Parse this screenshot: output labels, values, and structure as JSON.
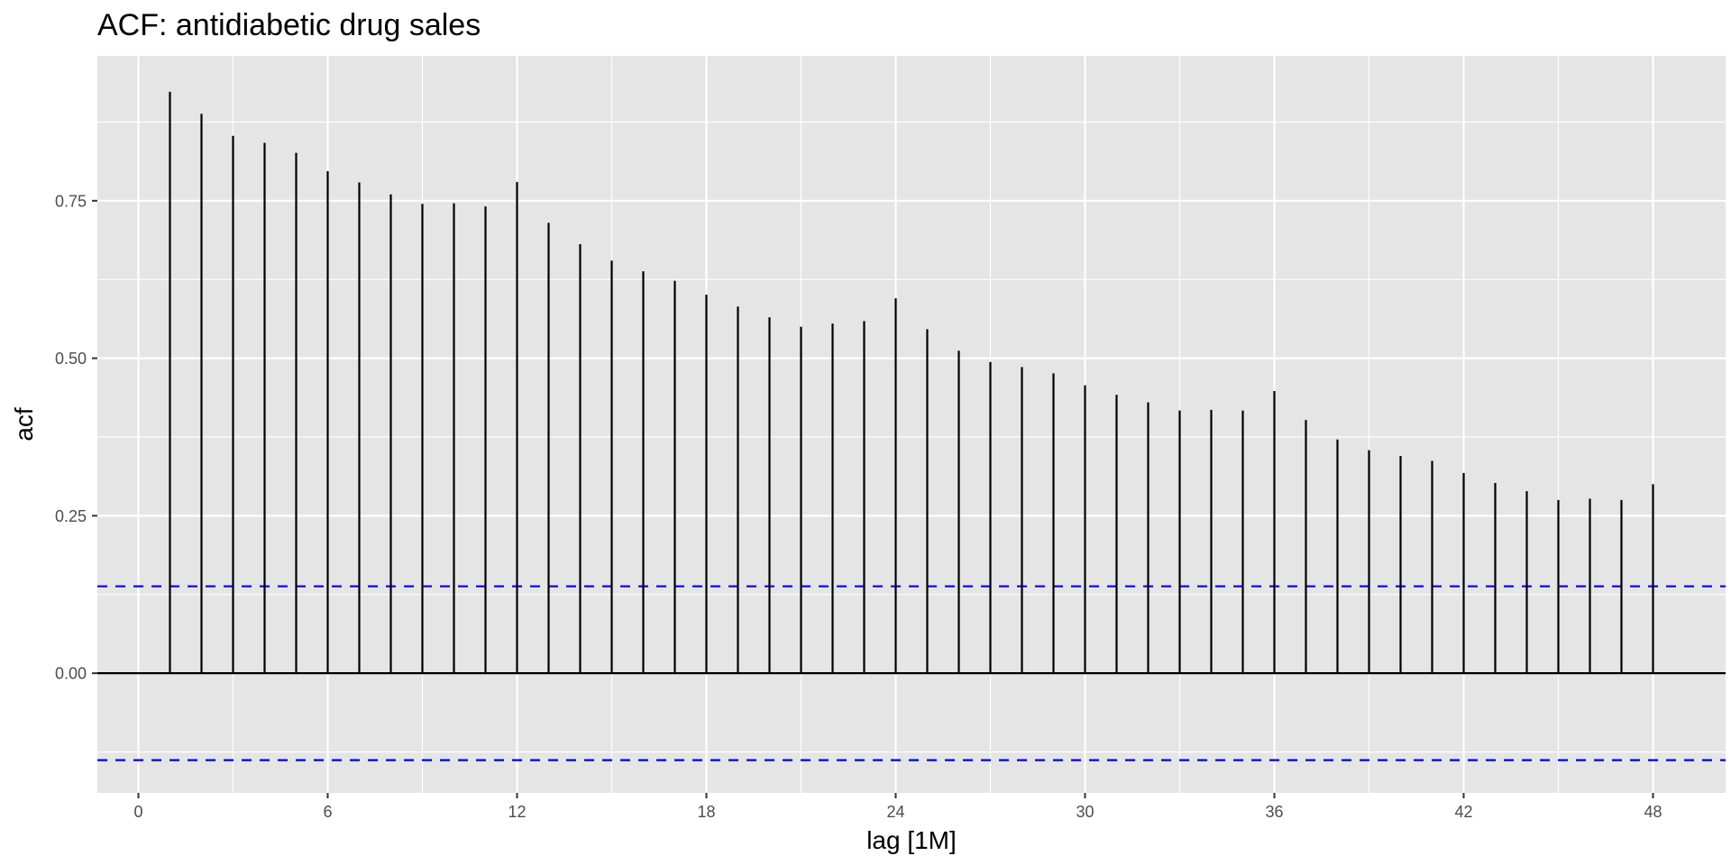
{
  "chart_data": {
    "type": "bar",
    "subtype": "acf-correlogram",
    "title": "ACF: antidiabetic drug sales",
    "xlabel": "lag [1M]",
    "ylabel": "acf",
    "x": [
      1,
      2,
      3,
      4,
      5,
      6,
      7,
      8,
      9,
      10,
      11,
      12,
      13,
      14,
      15,
      16,
      17,
      18,
      19,
      20,
      21,
      22,
      23,
      24,
      25,
      26,
      27,
      28,
      29,
      30,
      31,
      32,
      33,
      34,
      35,
      36,
      37,
      38,
      39,
      40,
      41,
      42,
      43,
      44,
      45,
      46,
      47,
      48
    ],
    "values": [
      0.923,
      0.888,
      0.853,
      0.842,
      0.826,
      0.797,
      0.779,
      0.76,
      0.745,
      0.746,
      0.741,
      0.78,
      0.715,
      0.681,
      0.655,
      0.638,
      0.623,
      0.601,
      0.582,
      0.565,
      0.55,
      0.555,
      0.559,
      0.595,
      0.546,
      0.512,
      0.494,
      0.486,
      0.476,
      0.457,
      0.442,
      0.43,
      0.417,
      0.418,
      0.417,
      0.448,
      0.402,
      0.371,
      0.354,
      0.345,
      0.337,
      0.318,
      0.302,
      0.289,
      0.275,
      0.277,
      0.275,
      0.3
    ],
    "confidence_bound": 0.138,
    "xlim": [
      -1.3,
      50.3
    ],
    "ylim": [
      -0.19,
      0.98
    ],
    "x_ticks": [
      0,
      6,
      12,
      18,
      24,
      30,
      36,
      42,
      48
    ],
    "x_tick_labels": [
      "0",
      "6",
      "12",
      "18",
      "24",
      "30",
      "36",
      "42",
      "48"
    ],
    "y_ticks": [
      0,
      0.25,
      0.5,
      0.75
    ],
    "y_tick_labels": [
      "0.00",
      "0.25",
      "0.50",
      "0.75"
    ],
    "grid": true,
    "colors": {
      "panel": "#e5e5e5",
      "grid_major": "#ffffff",
      "bar": "#000000",
      "bound": "#0000ff"
    }
  }
}
